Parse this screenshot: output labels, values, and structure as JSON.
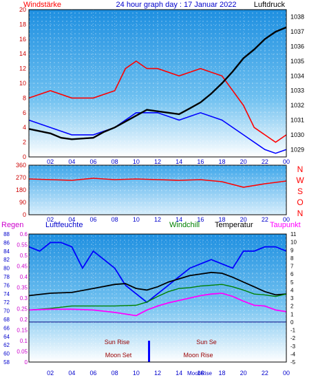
{
  "chart_data": [
    {
      "type": "line",
      "title": "24 hour graph day : 17 Januar 2022",
      "left_label": "Windstärke",
      "right_label": "Luftdruck",
      "x_ticks": [
        "02",
        "04",
        "06",
        "08",
        "10",
        "12",
        "14",
        "16",
        "18",
        "20",
        "22",
        "00"
      ],
      "y_left_ticks": [
        "0",
        "2",
        "4",
        "6",
        "8",
        "10",
        "12",
        "14",
        "16",
        "18",
        "20"
      ],
      "y_right_ticks": [
        "1029",
        "1030",
        "1031",
        "1032",
        "1033",
        "1034",
        "1035",
        "1036",
        "1037",
        "1038"
      ],
      "ylim_left": [
        0,
        20
      ],
      "ylim_right": [
        1028.5,
        1038.5
      ],
      "series": [
        {
          "name": "Windstärke",
          "color": "#ff0000",
          "x": [
            0,
            2,
            4,
            6,
            8,
            9,
            10,
            11,
            12,
            14,
            16,
            18,
            20,
            21,
            22,
            23,
            24
          ],
          "y": [
            8,
            9,
            8,
            8,
            9,
            12,
            13,
            12,
            12,
            11,
            12,
            11,
            7,
            4,
            3,
            2,
            3
          ]
        },
        {
          "name": "",
          "color": "#0000ff",
          "x": [
            0,
            2,
            4,
            6,
            8,
            10,
            12,
            14,
            16,
            18,
            20,
            22,
            23,
            24
          ],
          "y": [
            5,
            4,
            3,
            3,
            4,
            6,
            6,
            5,
            6,
            5,
            3,
            1,
            0.5,
            1
          ]
        },
        {
          "name": "Luftdruck",
          "color": "#000000",
          "x": [
            0,
            2,
            3,
            4,
            6,
            7,
            8,
            9,
            10,
            11,
            12,
            13,
            14,
            15,
            16,
            17,
            18,
            19,
            20,
            21,
            22,
            23,
            24
          ],
          "y": [
            1030.4,
            1030.1,
            1029.8,
            1029.7,
            1029.8,
            1030.2,
            1030.5,
            1030.9,
            1031.3,
            1031.7,
            1031.6,
            1031.5,
            1031.4,
            1031.8,
            1032.2,
            1032.8,
            1033.5,
            1034.3,
            1035.2,
            1035.8,
            1036.5,
            1037.0,
            1037.3
          ]
        }
      ]
    },
    {
      "type": "line",
      "title": "",
      "right_labels": [
        "N",
        "W",
        "S",
        "O",
        "N"
      ],
      "x_ticks": [
        "02",
        "04",
        "06",
        "08",
        "10",
        "12",
        "14",
        "16",
        "18",
        "20",
        "22",
        "00"
      ],
      "y_ticks": [
        "0",
        "90",
        "180",
        "270",
        "360"
      ],
      "ylim": [
        0,
        360
      ],
      "series": [
        {
          "name": "",
          "color": "#ff0000",
          "x": [
            0,
            2,
            4,
            6,
            8,
            10,
            12,
            14,
            16,
            18,
            20,
            22,
            24
          ],
          "y": [
            260,
            255,
            250,
            265,
            255,
            260,
            255,
            250,
            255,
            240,
            200,
            225,
            245
          ]
        }
      ]
    },
    {
      "type": "line",
      "title": "",
      "labels": [
        "Regen",
        "Luftfeuchte",
        "Windchill",
        "Temperatur",
        "Taupunkt"
      ],
      "x_ticks": [
        "02",
        "04",
        "06",
        "08",
        "10",
        "12",
        "14",
        "16",
        "18",
        "20",
        "22",
        "00"
      ],
      "y_rain_ticks": [
        "0",
        "0.05",
        "0.1",
        "0.15",
        "0.2",
        "0.25",
        "0.3",
        "0.35",
        "0.4",
        "0.45",
        "0.5",
        "0.55",
        "0.6"
      ],
      "y_hum_ticks": [
        "58",
        "60",
        "62",
        "64",
        "66",
        "68",
        "70",
        "72",
        "74",
        "76",
        "78",
        "80",
        "82",
        "84",
        "86",
        "88"
      ],
      "y_temp_ticks": [
        "-5",
        "-4",
        "-3",
        "-2",
        "-1",
        "0",
        "1",
        "2",
        "3",
        "4",
        "5",
        "6",
        "7",
        "8",
        "9",
        "10",
        "11"
      ],
      "ylim_rain": [
        0,
        0.6
      ],
      "ylim_hum": [
        58,
        88
      ],
      "ylim_temp": [
        -5,
        11
      ],
      "annotations": {
        "sun_rise": "Sun Rise",
        "sun_set": "Sun Se",
        "moon_set": "Moon Set",
        "moon_rise": "Moon Rise",
        "moon_rise_partial": "Moo6Rise"
      },
      "series": [
        {
          "name": "Luftfeuchte",
          "color": "#0000ff",
          "axis": "hum",
          "x": [
            0,
            1,
            2,
            3,
            4,
            5,
            6,
            7,
            8,
            9,
            10,
            11,
            12,
            13,
            14,
            15,
            16,
            17,
            18,
            19,
            20,
            21,
            22,
            23,
            24
          ],
          "y": [
            85,
            84,
            86,
            86,
            85,
            80,
            84,
            82,
            80,
            76,
            74,
            72,
            74,
            76,
            78,
            80,
            81,
            82,
            81,
            80,
            84,
            84,
            85,
            85,
            84
          ]
        },
        {
          "name": "Temperatur",
          "color": "#000000",
          "axis": "temp",
          "x": [
            0,
            2,
            4,
            6,
            8,
            9,
            10,
            11,
            12,
            13,
            14,
            15,
            16,
            17,
            18,
            19,
            20,
            21,
            22,
            23,
            24
          ],
          "y": [
            3.3,
            3.6,
            3.7,
            4.2,
            4.7,
            4.8,
            4.2,
            4.0,
            4.4,
            5.0,
            5.4,
            5.8,
            6.0,
            6.2,
            6.1,
            5.6,
            5.0,
            4.4,
            3.8,
            3.4,
            3.5
          ]
        },
        {
          "name": "Windchill",
          "color": "#008000",
          "axis": "temp",
          "x": [
            0,
            2,
            4,
            6,
            8,
            10,
            11,
            12,
            13,
            14,
            15,
            16,
            17,
            18,
            19,
            20,
            21,
            22,
            23,
            24
          ],
          "y": [
            1.5,
            1.7,
            2.0,
            2.0,
            2.0,
            2.1,
            2.5,
            3.2,
            3.8,
            4.2,
            4.3,
            4.5,
            4.6,
            4.7,
            4.4,
            4.0,
            3.5,
            3.4,
            3.2,
            3.5
          ]
        },
        {
          "name": "Taupunkt",
          "color": "#ff00ff",
          "axis": "temp",
          "x": [
            0,
            2,
            4,
            6,
            8,
            10,
            11,
            12,
            13,
            14,
            15,
            16,
            17,
            18,
            19,
            20,
            21,
            22,
            23,
            24
          ],
          "y": [
            1.5,
            1.6,
            1.6,
            1.5,
            1.2,
            0.8,
            1.5,
            2.0,
            2.4,
            2.7,
            3.0,
            3.3,
            3.5,
            3.6,
            3.2,
            2.6,
            2.1,
            2.0,
            1.5,
            1.3
          ]
        },
        {
          "name": "Regen",
          "color": "#0000ff",
          "axis": "rain",
          "x": [
            11.2
          ],
          "y": [
            0.1
          ]
        }
      ]
    }
  ]
}
